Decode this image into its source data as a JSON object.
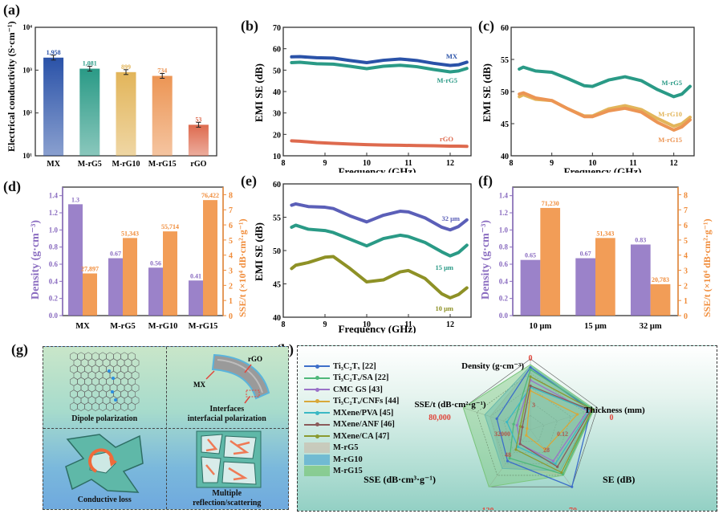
{
  "panel_labels": {
    "a": "(a)",
    "b": "(b)",
    "c": "(c)",
    "d": "(d)",
    "e": "(e)",
    "f": "(f)",
    "g": "(g)",
    "h": "(h)"
  },
  "colors": {
    "MX": "#2a52a8",
    "M-rG5": "#2a9a86",
    "M-rG10": "#e2b55a",
    "M-rG15": "#ec9554",
    "rGO": "#de6a4e",
    "density": "#8a6cc0",
    "sse_t": "#f08c3a",
    "t32": "#5b5fb8",
    "t15": "#2a9a86",
    "t10": "#8e9126",
    "red_label": "#e0463c"
  },
  "chart_data": [
    {
      "id": "a",
      "type": "bar",
      "title": "",
      "ylabel": "Electrical conductivity (S·cm⁻¹)",
      "xlabel": "",
      "yscale": "log",
      "ylim": [
        10,
        10000
      ],
      "yticks": [
        "10¹",
        "10²",
        "10³",
        "10⁴"
      ],
      "categories": [
        "MX",
        "M-rG5",
        "M-rG10",
        "M-rG15",
        "rGO"
      ],
      "values": [
        1958,
        1081,
        899,
        734,
        53
      ],
      "value_labels": [
        "1,958",
        "1,081",
        "899",
        "734",
        "53"
      ],
      "error_bars": true
    },
    {
      "id": "b",
      "type": "line",
      "xlabel": "Frequency (GHz)",
      "ylabel": "EMI SE (dB)",
      "xlim": [
        8,
        12.5
      ],
      "ylim": [
        10,
        70
      ],
      "xticks": [
        "8",
        "9",
        "10",
        "11",
        "12"
      ],
      "yticks": [
        "10",
        "20",
        "30",
        "40",
        "50",
        "60",
        "70"
      ],
      "x": [
        8.2,
        8.4,
        8.8,
        9.2,
        9.6,
        10.0,
        10.4,
        10.8,
        11.2,
        11.6,
        12.0,
        12.2,
        12.4
      ],
      "series": [
        {
          "name": "MX",
          "values": [
            56.2,
            56.3,
            55.8,
            55.6,
            54.5,
            53.5,
            54.6,
            55.2,
            54.5,
            53.2,
            52.2,
            52.5,
            53.7
          ]
        },
        {
          "name": "M-rG5",
          "values": [
            53.5,
            53.7,
            53.0,
            52.8,
            51.8,
            50.7,
            51.8,
            52.3,
            51.6,
            50.3,
            49.2,
            49.6,
            50.8
          ]
        },
        {
          "name": "rGO",
          "values": [
            17.0,
            16.8,
            16.2,
            15.8,
            15.5,
            15.2,
            15.0,
            14.9,
            14.8,
            14.7,
            14.5,
            14.5,
            14.4
          ]
        }
      ]
    },
    {
      "id": "c",
      "type": "line",
      "xlabel": "Frequency (GHz)",
      "ylabel": "EMI SE (dB)",
      "xlim": [
        8,
        12.5
      ],
      "ylim": [
        40,
        60
      ],
      "xticks": [
        "8",
        "9",
        "10",
        "11",
        "12"
      ],
      "yticks": [
        "40",
        "45",
        "50",
        "55",
        "60"
      ],
      "x": [
        8.2,
        8.3,
        8.6,
        9.0,
        9.4,
        9.8,
        10.0,
        10.4,
        10.8,
        11.2,
        11.6,
        12.0,
        12.2,
        12.4
      ],
      "series": [
        {
          "name": "M-rG5",
          "values": [
            53.5,
            53.8,
            53.2,
            53.0,
            52.0,
            50.9,
            50.8,
            51.8,
            52.3,
            51.7,
            50.3,
            49.2,
            49.6,
            50.8
          ]
        },
        {
          "name": "M-rG10",
          "values": [
            49.2,
            49.5,
            48.8,
            48.6,
            47.3,
            46.2,
            46.2,
            47.3,
            47.8,
            47.2,
            45.8,
            44.6,
            45.0,
            46.0
          ]
        },
        {
          "name": "M-rG15",
          "values": [
            49.6,
            49.8,
            49.0,
            48.6,
            47.3,
            46.1,
            46.1,
            47.0,
            47.4,
            46.8,
            45.2,
            44.0,
            44.5,
            45.6
          ]
        }
      ]
    },
    {
      "id": "d",
      "type": "bar",
      "xlabel": "",
      "ylabel": "Density (g·cm⁻³)",
      "ylabel_right": "SSE/t (×10⁴ dB·cm²·g⁻¹)",
      "ylim": [
        0,
        1.5
      ],
      "ylim_right": [
        0,
        8.5
      ],
      "yticks": [
        "0.0",
        "0.2",
        "0.4",
        "0.6",
        "0.8",
        "1.0",
        "1.2",
        "1.4"
      ],
      "yticks_right": [
        "0",
        "1",
        "2",
        "3",
        "4",
        "5",
        "6",
        "7",
        "8"
      ],
      "categories": [
        "MX",
        "M-rG5",
        "M-rG10",
        "M-rG15"
      ],
      "series": [
        {
          "name": "Density",
          "axis": "left",
          "values": [
            1.3,
            0.67,
            0.56,
            0.41
          ],
          "labels": [
            "1.3",
            "0.67",
            "0.56",
            "0.41"
          ]
        },
        {
          "name": "SSE/t",
          "axis": "right",
          "values": [
            2.7897,
            5.1343,
            5.5714,
            7.6422
          ],
          "labels": [
            "27,897",
            "51,343",
            "55,714",
            "76,422"
          ]
        }
      ]
    },
    {
      "id": "e",
      "type": "line",
      "xlabel": "Frequency (GHz)",
      "ylabel": "EMI SE (dB)",
      "xlim": [
        8,
        12.5
      ],
      "ylim": [
        40,
        60
      ],
      "xticks": [
        "8",
        "9",
        "10",
        "11",
        "12"
      ],
      "yticks": [
        "40",
        "45",
        "50",
        "55",
        "60"
      ],
      "x": [
        8.2,
        8.3,
        8.6,
        9.0,
        9.2,
        9.6,
        10.0,
        10.4,
        10.8,
        11.0,
        11.4,
        11.8,
        12.0,
        12.2,
        12.4
      ],
      "series": [
        {
          "name": "32 μm",
          "values": [
            56.8,
            57.0,
            56.6,
            56.5,
            56.3,
            55.2,
            54.3,
            55.3,
            55.9,
            55.8,
            54.9,
            53.5,
            53.1,
            53.6,
            54.6
          ]
        },
        {
          "name": "15 μm",
          "values": [
            53.5,
            53.8,
            53.2,
            53.0,
            52.7,
            51.7,
            50.7,
            51.8,
            52.3,
            52.1,
            51.2,
            49.8,
            49.2,
            49.7,
            50.8
          ]
        },
        {
          "name": "10 μm",
          "values": [
            47.3,
            47.8,
            48.2,
            49.0,
            49.1,
            47.3,
            45.3,
            45.6,
            46.8,
            47.0,
            45.8,
            43.5,
            42.9,
            43.4,
            44.4
          ]
        }
      ]
    },
    {
      "id": "f",
      "type": "bar",
      "xlabel": "",
      "ylabel": "Density (g·cm⁻³)",
      "ylabel_right": "SSE/t (×10⁴ dB·cm²·g⁻¹)",
      "ylim": [
        0,
        1.5
      ],
      "ylim_right": [
        0,
        8.5
      ],
      "yticks": [
        "0.0",
        "0.2",
        "0.4",
        "0.6",
        "0.8",
        "1.0",
        "1.2",
        "1.4"
      ],
      "yticks_right": [
        "0",
        "1",
        "2",
        "3",
        "4",
        "5",
        "6",
        "7",
        "8"
      ],
      "categories": [
        "10 μm",
        "15 μm",
        "32 μm"
      ],
      "series": [
        {
          "name": "Density",
          "axis": "left",
          "values": [
            0.65,
            0.67,
            0.83
          ],
          "labels": [
            "0.65",
            "0.67",
            "0.83"
          ]
        },
        {
          "name": "SSE/t",
          "axis": "right",
          "values": [
            7.123,
            5.1343,
            2.0783
          ],
          "labels": [
            "71,230",
            "51,343",
            "20,783"
          ]
        }
      ]
    },
    {
      "id": "h",
      "type": "radar",
      "axes": [
        {
          "name": "Density (g·cm⁻³)",
          "outer": "0",
          "inner": "3"
        },
        {
          "name": "Thickness (mm)",
          "outer": "0",
          "inner": "0.12"
        },
        {
          "name": "SE (dB)",
          "outer": "70",
          "inner": "28"
        },
        {
          "name": "SSE (dB·cm³·g⁻¹)",
          "outer": "120",
          "inner": "48"
        },
        {
          "name": "SSE/t (dB·cm²·g⁻¹)",
          "outer": "80,000",
          "inner": "32000"
        }
      ],
      "series": [
        {
          "name": "Ti₃C₂Tₓ [22]",
          "kind": "line",
          "color": "#3d6fc9",
          "values": [
            0.88,
            0.9,
            1.0,
            0.55,
            0.5
          ]
        },
        {
          "name": "Ti₃C₂Tₓ/SA [22]",
          "kind": "line",
          "color": "#4fb87a",
          "values": [
            0.85,
            0.93,
            0.78,
            0.5,
            0.25
          ]
        },
        {
          "name": "CMC GS [43]",
          "kind": "line",
          "color": "#9a72c8",
          "values": [
            0.7,
            0.85,
            0.55,
            0.25,
            0.2
          ]
        },
        {
          "name": "Ti₃C₂Tₓ/CNFs [44]",
          "kind": "line",
          "color": "#d8a83a",
          "values": [
            0.55,
            0.7,
            0.35,
            0.1,
            0.05
          ]
        },
        {
          "name": "MXene/PVA [45]",
          "kind": "line",
          "color": "#3ab8c4",
          "values": [
            0.6,
            0.88,
            0.6,
            0.3,
            0.35
          ]
        },
        {
          "name": "MXene/ANF [46]",
          "kind": "line",
          "color": "#8a5a5a",
          "values": [
            0.62,
            0.9,
            0.65,
            0.25,
            0.12
          ]
        },
        {
          "name": "MXene/CA [47]",
          "kind": "line",
          "color": "#8a9a30",
          "values": [
            0.75,
            0.92,
            0.75,
            0.35,
            0.15
          ]
        },
        {
          "name": "M-rG5",
          "kind": "area",
          "color": "#c9c2b2",
          "values": [
            0.88,
            0.92,
            0.8,
            0.65,
            0.6
          ]
        },
        {
          "name": "M-rG10",
          "kind": "area",
          "color": "#5aaed0",
          "values": [
            0.9,
            0.93,
            0.72,
            0.68,
            0.68
          ]
        },
        {
          "name": "M-rG15",
          "kind": "area",
          "color": "#7cc77e",
          "values": [
            0.92,
            0.95,
            0.8,
            1.0,
            1.0
          ]
        }
      ]
    }
  ],
  "panel_g": {
    "cells": [
      {
        "caption": "Dipole polarization"
      },
      {
        "caption": "Interfaces\ninterfacial polarization",
        "labels": {
          "rgo": "rGO",
          "mx": "MX"
        }
      },
      {
        "caption": "Conductive loss"
      },
      {
        "caption": "Multiple\nreflection/scattering"
      }
    ]
  }
}
